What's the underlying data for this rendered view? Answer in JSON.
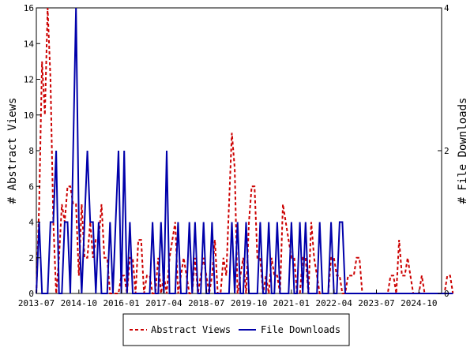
{
  "chart_data": {
    "type": "line",
    "ylabel_left": "# Abstract Views",
    "ylabel_right": "# File Downloads",
    "x_ticks": [
      "2013-07",
      "2014-10",
      "2016-01",
      "2017-04",
      "2018-07",
      "2019-10",
      "2021-01",
      "2022-04",
      "2023-07",
      "2024-10"
    ],
    "x_range": [
      "2013-07",
      "2025-06"
    ],
    "ylim_left": [
      0,
      16
    ],
    "yticks_left": [
      0,
      2,
      4,
      6,
      8,
      10,
      12,
      14,
      16
    ],
    "ylim_right": [
      0,
      4
    ],
    "yticks_right": [
      0,
      2,
      4
    ],
    "legend_position": "bottom-center",
    "series": [
      {
        "name": "Abstract Views",
        "axis": "left",
        "color": "#cc0000",
        "dash": "dashed",
        "values": [
          0,
          5,
          13,
          10,
          16,
          12,
          4,
          0,
          2,
          5,
          4,
          6,
          6,
          5,
          5,
          1,
          5,
          2,
          2,
          4,
          2,
          3,
          3,
          5,
          2,
          2,
          0,
          0,
          0,
          0,
          1,
          1,
          0,
          2,
          2,
          0,
          3,
          3,
          0,
          1,
          1,
          0,
          0,
          2,
          0,
          1,
          0,
          2,
          3,
          4,
          0,
          1,
          2,
          1,
          0,
          0,
          2,
          0,
          1,
          2,
          1,
          0,
          1,
          3,
          0,
          0,
          2,
          1,
          5,
          9,
          7,
          0,
          1,
          2,
          0,
          4,
          6,
          6,
          2,
          2,
          0,
          1,
          0,
          2,
          1,
          1,
          0,
          5,
          4,
          3,
          2,
          2,
          0,
          0,
          2,
          2,
          0,
          4,
          2,
          1,
          0,
          0,
          0,
          0,
          2,
          2,
          1,
          1,
          0,
          0,
          1,
          1,
          1,
          2,
          2,
          0,
          0,
          0,
          0,
          0,
          0,
          0,
          0,
          0,
          0,
          1,
          1,
          0,
          3,
          1,
          1,
          2,
          1,
          0,
          0,
          0,
          1,
          0,
          0,
          0,
          0,
          0,
          0,
          0,
          0,
          1,
          1,
          0
        ]
      },
      {
        "name": "File Downloads",
        "axis": "right",
        "color": "#0000aa",
        "dash": "solid",
        "values": [
          0,
          1,
          0,
          0,
          0,
          1,
          1,
          2,
          0,
          0,
          1,
          1,
          0,
          2,
          4,
          1,
          0,
          1,
          2,
          1,
          1,
          0,
          1,
          0,
          0,
          0,
          1,
          0,
          1,
          2,
          0,
          2,
          0,
          1,
          0,
          0,
          0,
          0,
          0,
          0,
          0,
          1,
          0,
          0,
          1,
          0,
          2,
          0,
          0,
          0,
          1,
          0,
          0,
          0,
          1,
          0,
          1,
          0,
          0,
          1,
          0,
          0,
          1,
          0,
          0,
          0,
          0,
          0,
          0,
          1,
          0,
          1,
          0,
          0,
          1,
          0,
          0,
          0,
          0,
          1,
          0,
          0,
          1,
          0,
          0,
          1,
          0,
          0,
          0,
          0,
          1,
          0,
          0,
          1,
          0,
          1,
          0,
          0,
          0,
          0,
          1,
          0,
          0,
          0,
          1,
          0,
          0,
          1,
          1,
          0,
          0,
          0,
          0,
          0,
          0,
          0,
          0,
          0,
          0,
          0,
          0,
          0,
          0,
          0,
          0,
          0,
          0,
          0,
          0,
          0,
          0,
          0,
          0,
          0,
          0,
          0,
          0,
          0,
          0,
          0,
          0,
          0,
          0,
          0,
          0,
          0,
          0,
          0
        ]
      }
    ]
  }
}
